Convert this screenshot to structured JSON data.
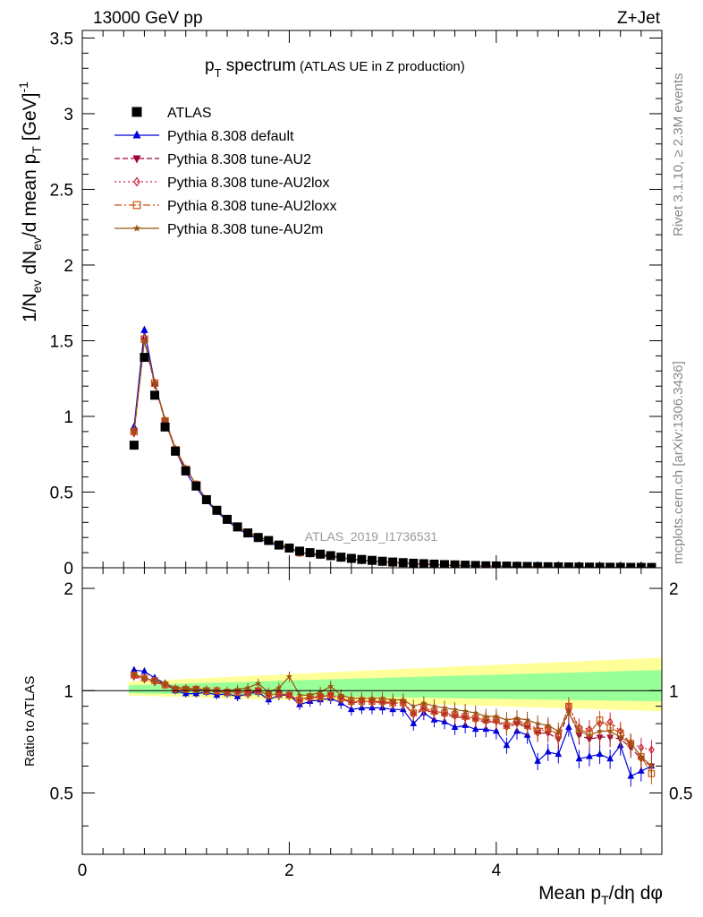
{
  "header": {
    "beam": "13000 GeV pp",
    "process": "Z+Jet",
    "title_main": "p",
    "title_sub": "T",
    "title_tail": " spectrum",
    "title_note": "(ATLAS UE in Z production)",
    "analysis_id": "ATLAS_2019_I1736531",
    "side_rivet": "Rivet 3.1.10, ≥ 2.3M events",
    "side_mcplots": "mcplots.cern.ch [arXiv:1306.3436]"
  },
  "axes": {
    "y_main_label": "1/N_ev dN_ev/d mean p_T [GeV]^-1",
    "y_ratio_label": "Ratio to ATLAS",
    "x_label": "Mean p_T/dη dφ",
    "x_ticks": [
      "0",
      "2",
      "4"
    ],
    "y_main_ticks": [
      "0",
      "0.5",
      "1",
      "1.5",
      "2",
      "2.5",
      "3",
      "3.5"
    ],
    "y_ratio_left_ticks": [
      "0.5",
      "1",
      "2"
    ],
    "y_ratio_right_ticks": [
      "0.5",
      "1",
      "2"
    ]
  },
  "legend": [
    {
      "label": "ATLAS",
      "color": "#000000",
      "marker": "square-filled",
      "line": "none"
    },
    {
      "label": "Pythia 8.308 default",
      "color": "#0000dd",
      "marker": "triangle-up-filled",
      "line": "solid"
    },
    {
      "label": "Pythia 8.308 tune-AU2",
      "color": "#a0003c",
      "marker": "triangle-down-filled",
      "line": "dashed"
    },
    {
      "label": "Pythia 8.308 tune-AU2lox",
      "color": "#cc2244",
      "marker": "diamond-open",
      "line": "dotted"
    },
    {
      "label": "Pythia 8.308 tune-AU2loxx",
      "color": "#cc5511",
      "marker": "square-open",
      "line": "dashdot"
    },
    {
      "label": "Pythia 8.308 tune-AU2m",
      "color": "#995511",
      "marker": "star",
      "line": "solid"
    }
  ],
  "chart_data": {
    "type": "line",
    "x": [
      0.5,
      0.6,
      0.7,
      0.8,
      0.9,
      1.0,
      1.1,
      1.2,
      1.3,
      1.4,
      1.5,
      1.6,
      1.7,
      1.8,
      1.9,
      2.0,
      2.1,
      2.2,
      2.3,
      2.4,
      2.5,
      2.6,
      2.7,
      2.8,
      2.9,
      3.0,
      3.1,
      3.2,
      3.3,
      3.4,
      3.5,
      3.6,
      3.7,
      3.8,
      3.9,
      4.0,
      4.1,
      4.2,
      4.3,
      4.4,
      4.5,
      4.6,
      4.7,
      4.8,
      4.9,
      5.0,
      5.1,
      5.2,
      5.3,
      5.4,
      5.5
    ],
    "xlim": [
      0,
      5.6
    ],
    "ylim_main": [
      0,
      3.55
    ],
    "ylim_ratio": [
      0.33,
      2.3
    ],
    "ratio_band_outer": [
      0.95,
      1.25
    ],
    "ratio_band_inner": [
      0.97,
      1.15
    ],
    "series": [
      {
        "name": "ATLAS",
        "values": [
          0.81,
          1.39,
          1.14,
          0.93,
          0.77,
          0.64,
          0.54,
          0.45,
          0.38,
          0.32,
          0.27,
          0.23,
          0.2,
          0.18,
          0.15,
          0.13,
          0.11,
          0.1,
          0.09,
          0.08,
          0.07,
          0.062,
          0.055,
          0.049,
          0.043,
          0.038,
          0.034,
          0.03,
          0.027,
          0.024,
          0.021,
          0.019,
          0.017,
          0.015,
          0.013,
          0.012,
          0.011,
          0.0095,
          0.0085,
          0.0076,
          0.0068,
          0.0061,
          0.0055,
          0.0049,
          0.0044,
          0.004,
          0.0036,
          0.0032,
          0.0029,
          0.0026,
          0.0023
        ],
        "ratio": [
          1.0,
          1.0,
          1.0,
          1.0,
          1.0,
          1.0,
          1.0,
          1.0,
          1.0,
          1.0,
          1.0,
          1.0,
          1.0,
          1.0,
          1.0,
          1.0,
          1.0,
          1.0,
          1.0,
          1.0,
          1.0,
          1.0,
          1.0,
          1.0,
          1.0,
          1.0,
          1.0,
          1.0,
          1.0,
          1.0,
          1.0,
          1.0,
          1.0,
          1.0,
          1.0,
          1.0,
          1.0,
          1.0,
          1.0,
          1.0,
          1.0,
          1.0,
          1.0,
          1.0,
          1.0,
          1.0,
          1.0,
          1.0,
          1.0,
          1.0,
          1.0
        ]
      },
      {
        "name": "Pythia 8.308 default",
        "values": [
          0.93,
          1.57,
          1.22,
          0.97,
          0.78,
          0.63,
          0.53,
          0.44,
          0.37,
          0.31,
          0.26,
          0.22,
          0.19,
          0.17,
          0.14,
          0.13,
          0.1,
          0.09,
          0.08,
          0.075,
          0.065,
          0.055,
          0.049,
          0.044,
          0.039,
          0.034,
          0.03,
          0.025,
          0.023,
          0.02,
          0.017,
          0.015,
          0.013,
          0.012,
          0.01,
          0.0093,
          0.0082,
          0.0071,
          0.0063,
          0.0055,
          0.0049,
          0.0044,
          0.0039,
          0.0034,
          0.0031,
          0.0028,
          0.0025,
          0.0022,
          0.002,
          0.0018,
          0.0016
        ],
        "ratio": [
          1.15,
          1.14,
          1.09,
          1.05,
          1.0,
          0.98,
          0.98,
          0.99,
          0.97,
          0.98,
          0.96,
          0.98,
          0.99,
          0.94,
          0.97,
          0.97,
          0.91,
          0.93,
          0.94,
          0.95,
          0.92,
          0.88,
          0.89,
          0.89,
          0.89,
          0.88,
          0.88,
          0.8,
          0.86,
          0.82,
          0.81,
          0.78,
          0.79,
          0.77,
          0.77,
          0.76,
          0.69,
          0.76,
          0.74,
          0.62,
          0.66,
          0.65,
          0.78,
          0.63,
          0.64,
          0.65,
          0.63,
          0.69,
          0.56,
          0.58,
          0.6
        ]
      },
      {
        "name": "Pythia 8.308 tune-AU2",
        "values": [
          0.89,
          1.5,
          1.21,
          0.97,
          0.78,
          0.65,
          0.55,
          0.45,
          0.38,
          0.32,
          0.27,
          0.23,
          0.2,
          0.18,
          0.15,
          0.13,
          0.1,
          0.095,
          0.087,
          0.078,
          0.067,
          0.058,
          0.051,
          0.046,
          0.04,
          0.035,
          0.031,
          0.026,
          0.024,
          0.021,
          0.018,
          0.016,
          0.014,
          0.012,
          0.011,
          0.0097,
          0.0087,
          0.0078,
          0.0068,
          0.006,
          0.0052,
          0.0047,
          0.0045,
          0.0038,
          0.0034,
          0.0031,
          0.0028,
          0.0025,
          0.0022,
          0.0019,
          0.0016
        ],
        "ratio": [
          1.1,
          1.08,
          1.06,
          1.04,
          1.01,
          1.01,
          1.01,
          1.0,
          0.99,
          0.99,
          0.99,
          0.98,
          1.0,
          0.97,
          0.98,
          0.97,
          0.93,
          0.95,
          0.96,
          0.97,
          0.95,
          0.92,
          0.93,
          0.93,
          0.92,
          0.92,
          0.92,
          0.85,
          0.88,
          0.86,
          0.85,
          0.84,
          0.83,
          0.82,
          0.81,
          0.81,
          0.78,
          0.8,
          0.78,
          0.75,
          0.75,
          0.72,
          0.87,
          0.74,
          0.72,
          0.73,
          0.73,
          0.72,
          0.68,
          0.63,
          0.6
        ]
      },
      {
        "name": "Pythia 8.308 tune-AU2lox",
        "values": [
          0.9,
          1.52,
          1.22,
          0.97,
          0.78,
          0.65,
          0.55,
          0.45,
          0.38,
          0.32,
          0.27,
          0.23,
          0.2,
          0.18,
          0.15,
          0.13,
          0.1,
          0.096,
          0.087,
          0.078,
          0.067,
          0.058,
          0.051,
          0.046,
          0.04,
          0.035,
          0.031,
          0.027,
          0.024,
          0.021,
          0.018,
          0.016,
          0.014,
          0.012,
          0.011,
          0.0098,
          0.0088,
          0.0078,
          0.0069,
          0.006,
          0.0053,
          0.0047,
          0.0046,
          0.0039,
          0.0036,
          0.0032,
          0.0029,
          0.0025,
          0.0022,
          0.0019,
          0.0016
        ],
        "ratio": [
          1.11,
          1.09,
          1.07,
          1.04,
          1.01,
          1.01,
          1.01,
          1.0,
          1.0,
          0.99,
          0.99,
          0.99,
          1.0,
          0.97,
          0.98,
          0.97,
          0.94,
          0.96,
          0.96,
          0.97,
          0.95,
          0.93,
          0.93,
          0.93,
          0.93,
          0.92,
          0.92,
          0.86,
          0.89,
          0.87,
          0.86,
          0.85,
          0.84,
          0.83,
          0.82,
          0.82,
          0.79,
          0.82,
          0.8,
          0.77,
          0.78,
          0.74,
          0.9,
          0.78,
          0.77,
          0.8,
          0.81,
          0.76,
          0.7,
          0.68,
          0.67
        ]
      },
      {
        "name": "Pythia 8.308 tune-AU2loxx",
        "values": [
          0.9,
          1.51,
          1.22,
          0.97,
          0.78,
          0.65,
          0.55,
          0.45,
          0.38,
          0.32,
          0.27,
          0.23,
          0.2,
          0.18,
          0.15,
          0.13,
          0.1,
          0.096,
          0.087,
          0.078,
          0.067,
          0.058,
          0.051,
          0.046,
          0.04,
          0.035,
          0.031,
          0.027,
          0.024,
          0.021,
          0.018,
          0.016,
          0.014,
          0.012,
          0.011,
          0.0098,
          0.0088,
          0.0078,
          0.0069,
          0.006,
          0.0053,
          0.0047,
          0.0046,
          0.0039,
          0.0035,
          0.0033,
          0.0029,
          0.0025,
          0.0022,
          0.0019,
          0.0016
        ],
        "ratio": [
          1.11,
          1.09,
          1.07,
          1.04,
          1.01,
          1.01,
          1.01,
          1.0,
          1.0,
          0.99,
          0.99,
          0.99,
          1.0,
          0.97,
          0.98,
          0.97,
          0.94,
          0.96,
          0.96,
          0.97,
          0.95,
          0.93,
          0.93,
          0.93,
          0.93,
          0.92,
          0.92,
          0.86,
          0.89,
          0.87,
          0.86,
          0.85,
          0.84,
          0.83,
          0.82,
          0.82,
          0.79,
          0.81,
          0.79,
          0.76,
          0.77,
          0.74,
          0.9,
          0.77,
          0.75,
          0.82,
          0.78,
          0.75,
          0.7,
          0.64,
          0.57
        ]
      },
      {
        "name": "Pythia 8.308 tune-AU2m",
        "values": [
          0.9,
          1.5,
          1.22,
          0.98,
          0.79,
          0.66,
          0.55,
          0.45,
          0.38,
          0.32,
          0.27,
          0.23,
          0.21,
          0.18,
          0.15,
          0.14,
          0.1,
          0.097,
          0.089,
          0.082,
          0.068,
          0.059,
          0.052,
          0.047,
          0.041,
          0.036,
          0.032,
          0.028,
          0.025,
          0.022,
          0.019,
          0.017,
          0.015,
          0.013,
          0.011,
          0.01,
          0.009,
          0.008,
          0.007,
          0.0062,
          0.0055,
          0.0049,
          0.0046,
          0.004,
          0.0036,
          0.0033,
          0.003,
          0.0026,
          0.0023,
          0.0019,
          0.0016
        ],
        "ratio": [
          1.12,
          1.09,
          1.07,
          1.05,
          1.02,
          1.02,
          1.01,
          1.01,
          1.0,
          1.0,
          1.01,
          1.02,
          1.05,
          0.99,
          1.02,
          1.1,
          0.97,
          0.97,
          0.99,
          1.03,
          0.97,
          0.95,
          0.95,
          0.95,
          0.95,
          0.94,
          0.94,
          0.9,
          0.92,
          0.9,
          0.89,
          0.88,
          0.87,
          0.86,
          0.84,
          0.84,
          0.82,
          0.83,
          0.82,
          0.8,
          0.79,
          0.76,
          0.86,
          0.76,
          0.74,
          0.76,
          0.76,
          0.73,
          0.7,
          0.64,
          0.6
        ]
      }
    ]
  }
}
